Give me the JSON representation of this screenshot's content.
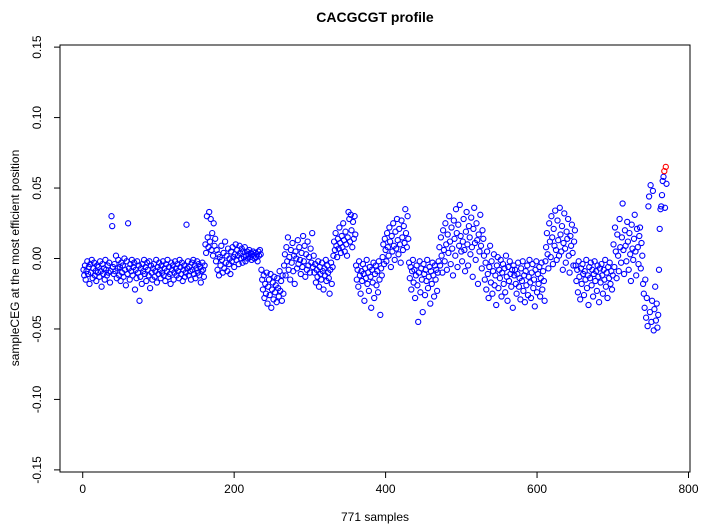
{
  "chart_data": {
    "type": "scatter",
    "title": "CACGCGT profile",
    "xlabel": "771 samples",
    "ylabel": "sampleCEG at the most efficient position",
    "n_samples": 771,
    "x_is_index": true,
    "xlim": [
      -30,
      802
    ],
    "ylim": [
      -0.1515,
      0.1515
    ],
    "grid": false,
    "legend": "none",
    "x_ticks": [
      0,
      200,
      400,
      600,
      800
    ],
    "x_tick_labels": [
      "0",
      "200",
      "400",
      "600",
      "800"
    ],
    "y_ticks": [
      -0.15,
      -0.1,
      -0.05,
      0.0,
      0.05,
      0.1,
      0.15
    ],
    "y_tick_labels": [
      "-0.15",
      "-0.10",
      "-0.05",
      "0.00",
      "0.05",
      "0.10",
      "0.15"
    ],
    "point_style": {
      "shape": "open-circle",
      "radius": 2.6,
      "stroke_width": 1.1
    },
    "colors": {
      "default": "#0000FF",
      "highlight": "#FF0000",
      "axis": "#000000",
      "background": "#FFFFFF"
    },
    "highlight_indices": [
      768,
      770
    ],
    "y_unit": "value = y_milli / 1000",
    "y_milli": [
      -8,
      -12,
      -5,
      -15,
      -9,
      -2,
      -11,
      -6,
      -18,
      -4,
      -10,
      -1,
      -14,
      -7,
      -3,
      -12,
      -9,
      -16,
      -5,
      -10,
      -6,
      -13,
      -2,
      -9,
      -20,
      -4,
      -11,
      -7,
      -15,
      -1,
      -8,
      -12,
      -5,
      -10,
      -3,
      -17,
      -9,
      30,
      23,
      -6,
      -11,
      -4,
      -9,
      2,
      -14,
      -7,
      -1,
      -12,
      -6,
      -16,
      -3,
      -10,
      -5,
      -13,
      0,
      -8,
      -19,
      -2,
      -11,
      25,
      -7,
      -15,
      -4,
      -9,
      -1,
      -12,
      -6,
      -3,
      -22,
      -8,
      -14,
      -2,
      -10,
      -5,
      -30,
      -13,
      -7,
      -18,
      -4,
      -9,
      -1,
      -11,
      -6,
      -16,
      -3,
      -8,
      -12,
      -2,
      -21,
      -5,
      -10,
      -15,
      -7,
      -4,
      -13,
      -9,
      -1,
      -17,
      -6,
      -11,
      -3,
      -8,
      -14,
      -5,
      -10,
      -2,
      -12,
      -7,
      -16,
      -4,
      -9,
      -1,
      -13,
      -6,
      -11,
      -18,
      -3,
      -8,
      -5,
      -15,
      -10,
      -2,
      -7,
      -12,
      -4,
      -9,
      -14,
      -1,
      -6,
      -11,
      -3,
      -16,
      -8,
      -5,
      -13,
      -10,
      24,
      -7,
      -2,
      -12,
      -6,
      -9,
      -15,
      -3,
      -8,
      -1,
      -11,
      -5,
      -14,
      -7,
      -2,
      -10,
      -4,
      -12,
      -6,
      -17,
      -9,
      -3,
      -8,
      -13,
      -5,
      10,
      4,
      30,
      15,
      8,
      33,
      12,
      28,
      6,
      18,
      2,
      25,
      9,
      14,
      -2,
      6,
      -8,
      3,
      -12,
      1,
      -5,
      9,
      -1,
      -10,
      4,
      -7,
      12,
      -3,
      2,
      -9,
      7,
      -4,
      0,
      -11,
      5,
      -2,
      8,
      1,
      -6,
      3,
      10,
      -1,
      6,
      2,
      -4,
      9,
      4,
      0,
      7,
      -3,
      5,
      1,
      8,
      -2,
      2,
      5,
      0,
      3,
      6,
      1,
      4,
      -1,
      3,
      5,
      2,
      0,
      4,
      1,
      3,
      -2,
      5,
      2,
      6,
      3,
      -8,
      -15,
      -22,
      -12,
      -28,
      -18,
      -25,
      -10,
      -32,
      -20,
      -15,
      -26,
      -11,
      -35,
      -22,
      -17,
      -29,
      -13,
      -24,
      -19,
      -31,
      -14,
      -21,
      -27,
      -9,
      -23,
      -16,
      -30,
      -12,
      -25,
      -5,
      3,
      -12,
      8,
      -2,
      15,
      -8,
      1,
      -15,
      6,
      -3,
      11,
      -9,
      2,
      -18,
      5,
      0,
      -7,
      13,
      -4,
      8,
      -1,
      -11,
      4,
      -6,
      16,
      -2,
      9,
      -13,
      3,
      -8,
      12,
      -5,
      1,
      -10,
      7,
      -3,
      18,
      -6,
      2,
      -10,
      -4,
      -17,
      -8,
      -13,
      -2,
      -20,
      -6,
      -11,
      -15,
      -3,
      -9,
      -22,
      -7,
      -12,
      -1,
      -16,
      -5,
      -10,
      -14,
      -25,
      -8,
      -3,
      -18,
      -6,
      2,
      12,
      6,
      18,
      9,
      1,
      14,
      7,
      22,
      11,
      4,
      16,
      8,
      25,
      13,
      5,
      19,
      10,
      2,
      15,
      33,
      28,
      12,
      31,
      20,
      8,
      26,
      14,
      30,
      17,
      -5,
      -15,
      -8,
      -20,
      -2,
      -12,
      -25,
      -9,
      -16,
      -4,
      -11,
      -30,
      -7,
      -14,
      -1,
      -18,
      -10,
      -23,
      -6,
      -13,
      -35,
      -8,
      -17,
      -3,
      -28,
      -11,
      -5,
      -19,
      -9,
      -24,
      -2,
      -15,
      -40,
      -7,
      -12,
      1,
      10,
      -4,
      14,
      6,
      -2,
      18,
      8,
      2,
      22,
      12,
      -6,
      16,
      5,
      25,
      9,
      -1,
      19,
      7,
      28,
      13,
      3,
      21,
      10,
      -3,
      27,
      15,
      6,
      23,
      11,
      35,
      18,
      8,
      30,
      14,
      -3,
      -14,
      -6,
      -22,
      -9,
      -1,
      -17,
      -8,
      -28,
      -12,
      -5,
      -19,
      -45,
      -10,
      -2,
      -24,
      -7,
      -15,
      -38,
      -4,
      -11,
      -26,
      -8,
      -16,
      -1,
      -21,
      -13,
      -6,
      -32,
      -9,
      -18,
      -3,
      -12,
      -27,
      -5,
      -15,
      -8,
      -23,
      -10,
      -2,
      8,
      -5,
      15,
      2,
      -10,
      20,
      6,
      -2,
      25,
      10,
      -8,
      17,
      4,
      30,
      12,
      -4,
      22,
      7,
      -12,
      27,
      14,
      2,
      35,
      18,
      -6,
      24,
      9,
      38,
      16,
      5,
      -2,
      12,
      28,
      6,
      -9,
      19,
      33,
      10,
      -5,
      23,
      15,
      3,
      29,
      8,
      -13,
      21,
      36,
      11,
      -1,
      25,
      13,
      -18,
      17,
      5,
      31,
      9,
      -7,
      20,
      14,
      2,
      -15,
      -3,
      -22,
      5,
      -11,
      -28,
      -6,
      9,
      -17,
      -2,
      -25,
      -9,
      3,
      -19,
      -12,
      -33,
      -5,
      1,
      -21,
      -8,
      -14,
      -1,
      -27,
      -10,
      -4,
      -18,
      -7,
      -24,
      2,
      -13,
      -30,
      -6,
      -16,
      -2,
      -11,
      -20,
      -8,
      -35,
      -5,
      -12,
      -8,
      -18,
      -25,
      -11,
      -3,
      -20,
      -14,
      -29,
      -7,
      -16,
      -2,
      -23,
      -12,
      -31,
      -9,
      -19,
      -5,
      -26,
      -13,
      -1,
      -17,
      -28,
      -10,
      -4,
      -21,
      -15,
      -34,
      -8,
      -2,
      -24,
      -11,
      -18,
      -6,
      -27,
      -14,
      -3,
      -22,
      -9,
      -16,
      -30,
      -2,
      8,
      18,
      3,
      -7,
      25,
      12,
      1,
      30,
      15,
      -4,
      21,
      9,
      34,
      6,
      -1,
      27,
      13,
      2,
      36,
      17,
      5,
      23,
      -8,
      11,
      32,
      7,
      -3,
      19,
      14,
      28,
      2,
      -10,
      16,
      9,
      24,
      4,
      -5,
      12,
      20,
      -5,
      -16,
      -8,
      -24,
      -2,
      -13,
      -29,
      -7,
      -18,
      -4,
      -11,
      -26,
      -9,
      -15,
      -1,
      -21,
      -12,
      -33,
      -6,
      -14,
      -3,
      -19,
      -8,
      -27,
      -11,
      -2,
      -16,
      -9,
      -23,
      -5,
      -13,
      -31,
      -7,
      -17,
      -4,
      -12,
      -25,
      -8,
      -15,
      -1,
      -20,
      -10,
      -28,
      -6,
      -14,
      -3,
      -18,
      -9,
      -22,
      -12,
      10,
      -6,
      22,
      5,
      -14,
      17,
      2,
      -9,
      28,
      8,
      -3,
      15,
      39,
      6,
      -11,
      20,
      9,
      -2,
      26,
      12,
      -8,
      18,
      3,
      -16,
      24,
      7,
      -1,
      14,
      31,
      5,
      -12,
      21,
      8,
      -4,
      16,
      22,
      -7,
      11,
      2,
      -18,
      -25,
      -35,
      -15,
      -42,
      -28,
      -48,
      37,
      44,
      -38,
      52,
      -45,
      -30,
      48,
      -51,
      -36,
      -20,
      -44,
      -32,
      -49,
      -40,
      -8,
      21,
      35,
      37,
      45,
      55,
      58,
      62,
      36,
      65,
      53
    ]
  }
}
